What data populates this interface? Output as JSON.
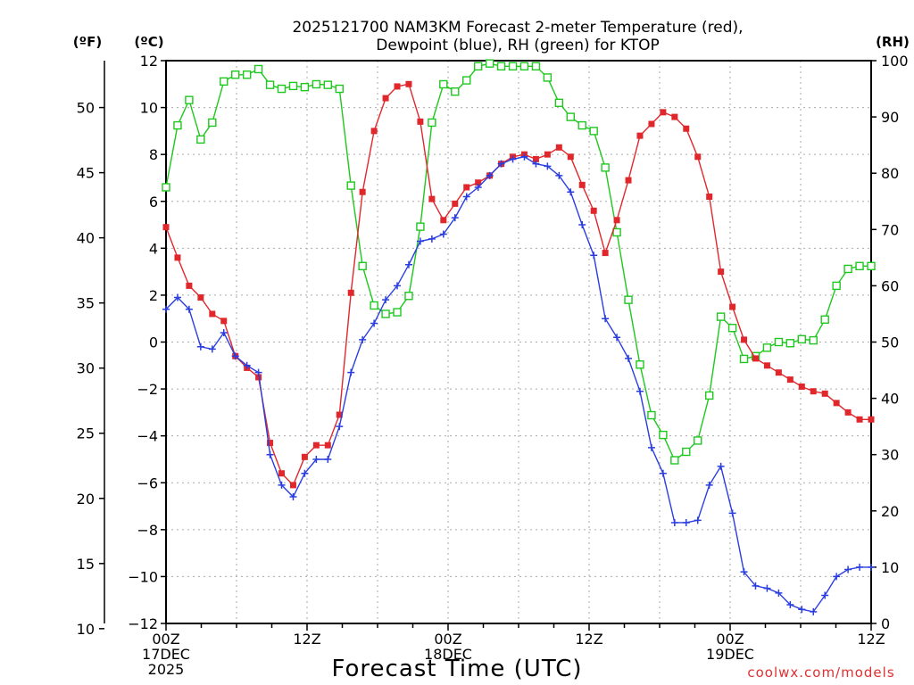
{
  "chart_data": {
    "type": "line",
    "title_line1": "2025121700 NAM3KM Forecast 2-meter Temperature (red),",
    "title_line2": "Dewpoint (blue), RH (green) for KTOP",
    "units": {
      "f": "(ºF)",
      "c": "(ºC)",
      "rh": "(RH)"
    },
    "xlabel": "Forecast Time (UTC)",
    "credit": "coolwx.com/models",
    "x_range_hours": [
      0,
      60
    ],
    "x_ticks": [
      {
        "hour": 0,
        "lines": [
          "00Z",
          "17DEC",
          "2025"
        ]
      },
      {
        "hour": 12,
        "lines": [
          "12Z"
        ]
      },
      {
        "hour": 24,
        "lines": [
          "00Z",
          "18DEC"
        ]
      },
      {
        "hour": 36,
        "lines": [
          "12Z"
        ]
      },
      {
        "hour": 48,
        "lines": [
          "00Z",
          "19DEC"
        ]
      },
      {
        "hour": 60,
        "lines": [
          "12Z"
        ]
      }
    ],
    "y_celsius_range": [
      -12,
      12
    ],
    "y_celsius_ticks": [
      "−12",
      "−10",
      "−8",
      "−6",
      "−4",
      "−2",
      "0",
      "2",
      "4",
      "6",
      "8",
      "10",
      "12"
    ],
    "y_fahrenheit_range": [
      10.4,
      53.6
    ],
    "y_fahrenheit_ticks": [
      "10",
      "15",
      "20",
      "25",
      "30",
      "35",
      "40",
      "45",
      "50"
    ],
    "y_rh_range": [
      0,
      100
    ],
    "y_rh_ticks": [
      "0",
      "10",
      "20",
      "30",
      "40",
      "50",
      "60",
      "70",
      "80",
      "90",
      "100"
    ],
    "grid": true,
    "series": [
      {
        "name": "2-meter Temperature",
        "unit": "C",
        "color": "#e0282c",
        "marker": "filled-square",
        "values": [
          4.9,
          3.6,
          2.4,
          1.9,
          1.2,
          0.9,
          -0.6,
          -1.1,
          -1.5,
          -4.3,
          -5.6,
          -6.1,
          -4.9,
          -4.4,
          -4.4,
          -3.1,
          2.1,
          6.4,
          9.0,
          10.4,
          10.9,
          11.0,
          9.4,
          6.1,
          5.2,
          5.9,
          6.6,
          6.8,
          7.1,
          7.6,
          7.9,
          8.0,
          7.8,
          8.0,
          8.3,
          7.9,
          6.7,
          5.6,
          3.8,
          5.2,
          6.9,
          8.8,
          9.3,
          9.8,
          9.6,
          9.1,
          7.9,
          6.2,
          3.0,
          1.5,
          0.1,
          -0.7,
          -1.0,
          -1.3,
          -1.6,
          -1.9,
          -2.1,
          -2.2,
          -2.6,
          -3.0,
          -3.3,
          -3.3
        ]
      },
      {
        "name": "Dewpoint",
        "unit": "C",
        "color": "#2a3ee0",
        "marker": "plus",
        "values": [
          1.4,
          1.9,
          1.4,
          -0.2,
          -0.3,
          0.4,
          -0.6,
          -1.0,
          -1.3,
          -4.8,
          -6.1,
          -6.6,
          -5.6,
          -5.0,
          -5.0,
          -3.6,
          -1.3,
          0.1,
          0.8,
          1.8,
          2.4,
          3.3,
          4.3,
          4.4,
          4.6,
          5.3,
          6.2,
          6.6,
          7.1,
          7.6,
          7.8,
          7.9,
          7.6,
          7.5,
          7.1,
          6.4,
          5.0,
          3.7,
          1.0,
          0.2,
          -0.7,
          -2.1,
          -4.5,
          -5.6,
          -7.7,
          -7.7,
          -7.6,
          -6.1,
          -5.3,
          -7.3,
          -9.8,
          -10.4,
          -10.5,
          -10.7,
          -11.2,
          -11.4,
          -11.5,
          -10.8,
          -10.0,
          -9.7,
          -9.6,
          -9.6
        ]
      },
      {
        "name": "Relative Humidity",
        "unit": "%",
        "color": "#1ec81e",
        "marker": "open-square",
        "values": [
          77.5,
          88.5,
          93.0,
          86.0,
          89.0,
          96.3,
          97.5,
          97.5,
          98.5,
          95.7,
          95.0,
          95.5,
          95.3,
          95.8,
          95.7,
          95.0,
          77.8,
          63.5,
          56.5,
          55.0,
          55.3,
          58.2,
          70.5,
          89.0,
          95.8,
          94.5,
          96.5,
          99.0,
          99.5,
          99.0,
          99.0,
          99.0,
          99.0,
          97.0,
          92.5,
          90.0,
          88.5,
          87.5,
          81.0,
          69.5,
          57.5,
          46.0,
          37.0,
          33.5,
          29.0,
          30.5,
          32.5,
          40.5,
          54.5,
          52.5,
          47.0,
          47.5,
          49.0,
          50.0,
          49.8,
          50.5,
          50.3,
          54.0,
          60.0,
          63.0,
          63.5,
          63.5
        ]
      }
    ]
  }
}
